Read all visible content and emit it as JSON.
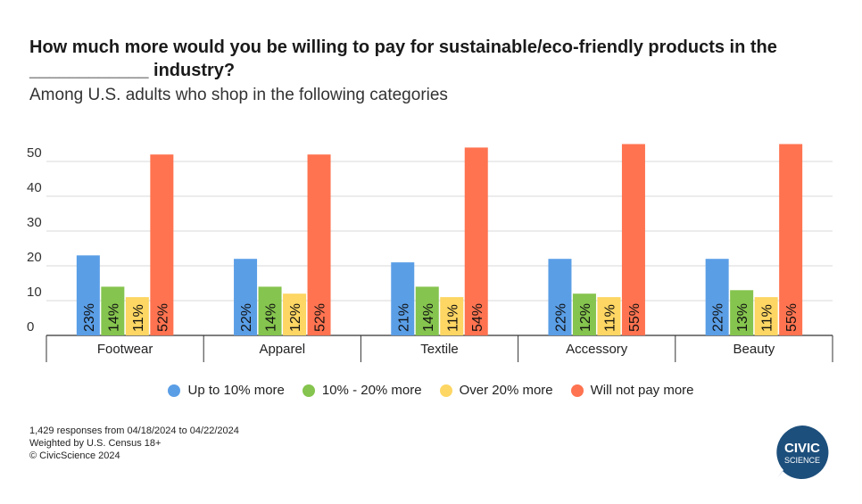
{
  "header": {
    "title": "How much more would you be willing to pay for sustainable/eco-friendly products in the ____________ industry?",
    "subtitle": "Among U.S. adults who shop in the following categories"
  },
  "notes": [
    "1,429 responses from 04/18/2024 to 04/22/2024",
    "Weighted by U.S. Census 18+",
    "© CivicScience 2024"
  ],
  "logo": {
    "line1": "CIVIC",
    "line2": "SCIENCE",
    "color": "#1d4f7c"
  },
  "chart_data": {
    "type": "bar",
    "orientation": "vertical",
    "grouped": true,
    "categories": [
      "Footwear",
      "Apparel",
      "Textile",
      "Accessory",
      "Beauty"
    ],
    "ylim": [
      0,
      57
    ],
    "yticks": [
      0,
      10,
      20,
      30,
      40,
      50
    ],
    "grid": true,
    "legend_position": "bottom",
    "value_suffix": "%",
    "series": [
      {
        "name": "Up to 10% more",
        "color": "#5a9ee6",
        "values": [
          23,
          22,
          21,
          22,
          22
        ]
      },
      {
        "name": "10% - 20% more",
        "color": "#85c44e",
        "values": [
          14,
          14,
          14,
          12,
          13
        ]
      },
      {
        "name": "Over 20% more",
        "color": "#fdd663",
        "values": [
          11,
          12,
          11,
          11,
          11
        ]
      },
      {
        "name": "Will not pay more",
        "color": "#ff7350",
        "values": [
          52,
          52,
          54,
          55,
          55
        ]
      }
    ]
  }
}
